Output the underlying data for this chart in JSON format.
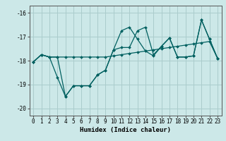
{
  "xlabel": "Humidex (Indice chaleur)",
  "xlim": [
    -0.5,
    23.5
  ],
  "ylim": [
    -20.3,
    -15.7
  ],
  "yticks": [
    -20,
    -19,
    -18,
    -17,
    -16
  ],
  "xticks": [
    0,
    1,
    2,
    3,
    4,
    5,
    6,
    7,
    8,
    9,
    10,
    11,
    12,
    13,
    14,
    15,
    16,
    17,
    18,
    19,
    20,
    21,
    22,
    23
  ],
  "bg_color": "#cce8e8",
  "grid_color": "#aacccc",
  "line_color": "#006060",
  "series1_x": [
    0,
    1,
    2,
    3,
    4,
    5,
    6,
    7,
    8,
    9,
    10,
    11,
    12,
    13,
    14,
    15,
    16,
    17,
    18,
    19,
    20,
    21,
    22,
    23
  ],
  "series1_y": [
    -18.05,
    -17.75,
    -17.85,
    -17.85,
    -17.85,
    -17.85,
    -17.85,
    -17.85,
    -17.85,
    -17.85,
    -17.8,
    -17.75,
    -17.7,
    -17.65,
    -17.6,
    -17.55,
    -17.5,
    -17.45,
    -17.4,
    -17.35,
    -17.3,
    -17.25,
    -17.2,
    -17.9
  ],
  "series2_x": [
    0,
    1,
    2,
    3,
    4,
    5,
    6,
    7,
    8,
    9,
    10,
    11,
    12,
    13,
    14,
    15,
    16,
    17,
    18,
    19,
    20,
    21,
    22,
    23
  ],
  "series2_y": [
    -18.05,
    -17.75,
    -17.85,
    -17.85,
    -19.5,
    -19.05,
    -19.05,
    -19.05,
    -18.6,
    -18.4,
    -17.55,
    -16.75,
    -16.6,
    -17.1,
    -17.6,
    -17.8,
    -17.4,
    -17.05,
    -17.85,
    -17.85,
    -17.8,
    -16.3,
    -17.1,
    -17.9
  ],
  "series3_x": [
    0,
    1,
    2,
    3,
    4,
    5,
    6,
    7,
    8,
    9,
    10,
    11,
    12,
    13,
    14,
    15,
    16,
    17,
    18,
    19,
    20,
    21,
    22,
    23
  ],
  "series3_y": [
    -18.05,
    -17.75,
    -17.85,
    -18.7,
    -19.5,
    -19.05,
    -19.05,
    -19.05,
    -18.6,
    -18.4,
    -17.55,
    -17.45,
    -17.45,
    -16.75,
    -16.6,
    -17.75,
    -17.4,
    -17.05,
    -17.85,
    -17.85,
    -17.8,
    -16.3,
    -17.1,
    -17.9
  ]
}
